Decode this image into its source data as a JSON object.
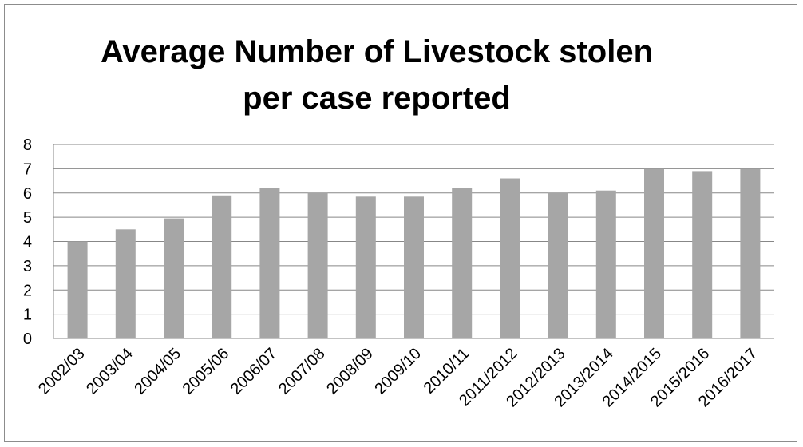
{
  "chart_data": {
    "type": "bar",
    "title": [
      "Average Number of Livestock stolen",
      "per case reported"
    ],
    "categories": [
      "2002/03",
      "2003/04",
      "2004/05",
      "2005/06",
      "2006/07",
      "2007/08",
      "2008/09",
      "2009/10",
      "2010/11",
      "2011/2012",
      "2012/2013",
      "2013/2014",
      "2014/2015",
      "2015/2016",
      "2016/2017"
    ],
    "values": [
      4.0,
      4.5,
      4.95,
      5.9,
      6.2,
      6.0,
      5.85,
      5.85,
      6.2,
      6.6,
      6.0,
      6.1,
      7.0,
      6.9,
      7.0
    ],
    "xlabel": "",
    "ylabel": "",
    "ylim": [
      0,
      8
    ],
    "yticks": [
      "0",
      "1",
      "2",
      "3",
      "4",
      "5",
      "6",
      "7",
      "8"
    ],
    "grid": true,
    "legend": "none",
    "bar_color": "#a6a6a6",
    "grid_color": "#878787"
  }
}
